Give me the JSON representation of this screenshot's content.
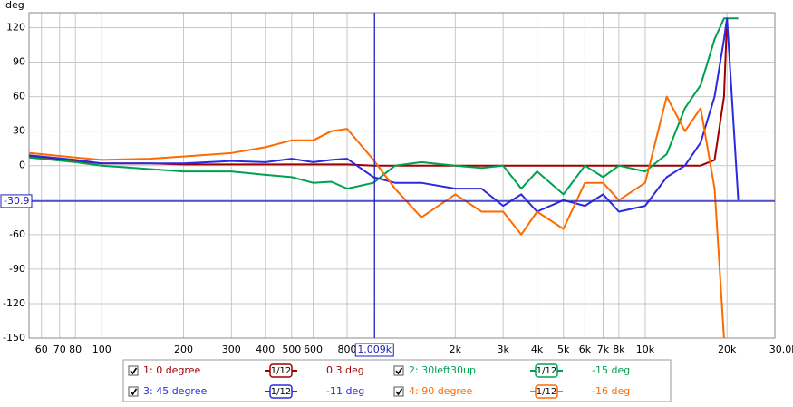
{
  "chart_data": {
    "type": "line",
    "y_label": "deg",
    "log_x": true,
    "grid": true,
    "x": [
      54,
      60,
      80,
      100,
      150,
      200,
      300,
      400,
      500,
      600,
      700,
      800,
      1000,
      1200,
      1500,
      2000,
      2500,
      3000,
      3500,
      4000,
      5000,
      6000,
      7000,
      8000,
      10000,
      12000,
      14000,
      16000,
      18000,
      19500,
      20000,
      22000
    ],
    "xlim": [
      54,
      30000
    ],
    "xticks": [
      60,
      70,
      80,
      100,
      200,
      300,
      400,
      500,
      600,
      800,
      {
        "value": 2000,
        "label": "2k"
      },
      {
        "value": 3000,
        "label": "3k"
      },
      {
        "value": 4000,
        "label": "4k"
      },
      {
        "value": 5000,
        "label": "5k"
      },
      {
        "value": 6000,
        "label": "6k"
      },
      {
        "value": 7000,
        "label": "7k"
      },
      {
        "value": 8000,
        "label": "8k"
      },
      {
        "value": 10000,
        "label": "10k"
      },
      {
        "value": 20000,
        "label": "20k"
      },
      {
        "value": 30000,
        "label": "30.0k Hz"
      }
    ],
    "ylim": [
      -150,
      133
    ],
    "yticks": [
      120,
      90,
      60,
      30,
      0,
      -30,
      -60,
      -90,
      -120,
      -150
    ],
    "cursor": {
      "x": {
        "value": 1009,
        "label": "1.009k"
      },
      "y": -30.9
    },
    "series": [
      {
        "name": "1: 0 degree",
        "color": "#a00000",
        "smoothing": "1/12",
        "cursor_value": "0.3 deg",
        "values": [
          8,
          7,
          4,
          2,
          2,
          1,
          1,
          1,
          1,
          1,
          1,
          1,
          0,
          0,
          0,
          0,
          0,
          0,
          0,
          0,
          0,
          0,
          0,
          0,
          0,
          0,
          0,
          0,
          5,
          60,
          128,
          null
        ]
      },
      {
        "name": "2: 30left30up",
        "color": "#00a050",
        "smoothing": "1/12",
        "cursor_value": "-15 deg",
        "values": [
          7,
          6,
          3,
          0,
          -3,
          -5,
          -5,
          -8,
          -10,
          -15,
          -14,
          -20,
          -15,
          0,
          3,
          0,
          -2,
          0,
          -20,
          -5,
          -25,
          0,
          -10,
          0,
          -5,
          10,
          50,
          70,
          110,
          128,
          128,
          128
        ]
      },
      {
        "name": "3: 45 degree",
        "color": "#2a2ae0",
        "smoothing": "1/12",
        "cursor_value": "-11 deg",
        "values": [
          9,
          8,
          5,
          2,
          2,
          2,
          4,
          3,
          6,
          3,
          5,
          6,
          -10,
          -15,
          -15,
          -20,
          -20,
          -35,
          -25,
          -40,
          -30,
          -35,
          -25,
          -40,
          -35,
          -10,
          0,
          20,
          60,
          110,
          128,
          -30
        ]
      },
      {
        "name": "4: 90 degree",
        "color": "#ff6a00",
        "smoothing": "1/12",
        "cursor_value": "-16 deg",
        "values": [
          11,
          10,
          7,
          5,
          6,
          8,
          11,
          16,
          22,
          22,
          30,
          32,
          5,
          -20,
          -45,
          -25,
          -40,
          -40,
          -60,
          -40,
          -55,
          -15,
          -15,
          -30,
          -15,
          60,
          30,
          50,
          -20,
          -150,
          null,
          null
        ]
      }
    ]
  }
}
